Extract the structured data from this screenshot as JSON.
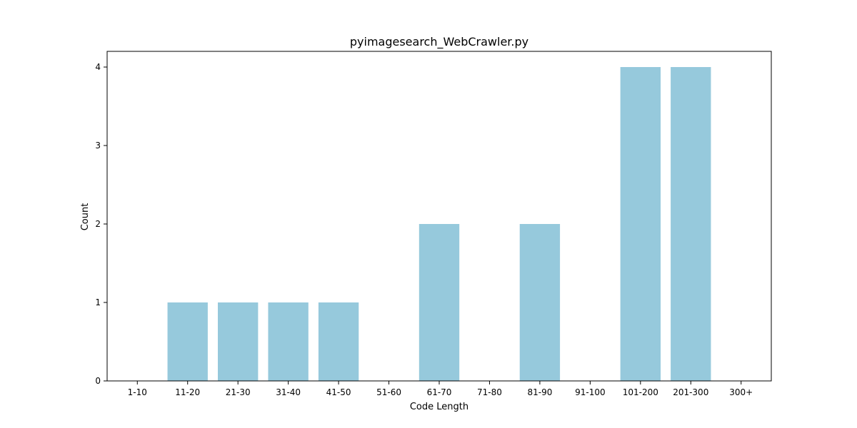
{
  "chart_data": {
    "type": "bar",
    "title": "pyimagesearch_WebCrawler.py",
    "xlabel": "Code Length",
    "ylabel": "Count",
    "categories": [
      "1-10",
      "11-20",
      "21-30",
      "31-40",
      "41-50",
      "51-60",
      "61-70",
      "71-80",
      "81-90",
      "91-100",
      "101-200",
      "201-300",
      "300+"
    ],
    "values": [
      0,
      1,
      1,
      1,
      1,
      0,
      2,
      0,
      2,
      0,
      4,
      4,
      0
    ],
    "ylim": [
      0,
      4.2
    ],
    "yticks": [
      0,
      1,
      2,
      3,
      4
    ],
    "bar_color": "#96c9dc",
    "grid": false,
    "legend": "none"
  }
}
